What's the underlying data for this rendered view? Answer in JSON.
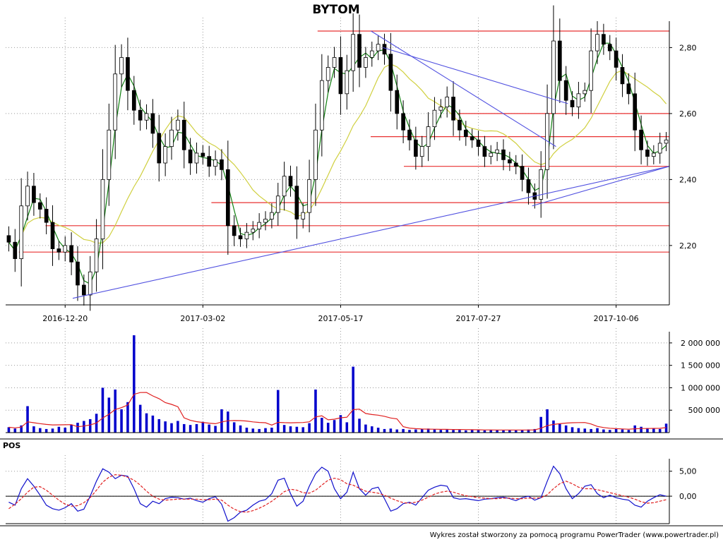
{
  "chart_data": [
    {
      "type": "candlestick",
      "title": "BYTOM",
      "x_tick_labels": [
        "2016-12-20",
        "2017-03-02",
        "2017-05-17",
        "2017-07-27",
        "2017-10-06"
      ],
      "y_tick_labels": [
        "2,20",
        "2,40",
        "2,60",
        "2,80"
      ],
      "y_ticks": [
        2.2,
        2.4,
        2.6,
        2.8
      ],
      "ylim": [
        2.02,
        2.88
      ],
      "grid": true,
      "series": [
        {
          "name": "",
          "kind": "ohlc",
          "values": [
            2.21,
            2.16,
            2.32,
            2.38,
            2.33,
            2.31,
            2.27,
            2.19,
            2.18,
            2.2,
            2.15,
            2.08,
            2.05,
            2.12,
            2.22,
            2.4,
            2.55,
            2.72,
            2.77,
            2.67,
            2.61,
            2.58,
            2.6,
            2.54,
            2.45,
            2.5,
            2.55,
            2.58,
            2.49,
            2.45,
            2.48,
            2.47,
            2.44,
            2.46,
            2.43,
            2.26,
            2.23,
            2.22,
            2.24,
            2.25,
            2.27,
            2.28,
            2.3,
            2.35,
            2.41,
            2.38,
            2.28,
            2.3,
            2.4,
            2.55,
            2.7,
            2.74,
            2.77,
            2.66,
            2.73,
            2.84,
            2.74,
            2.77,
            2.79,
            2.81,
            2.78,
            2.67,
            2.6,
            2.55,
            2.52,
            2.47,
            2.5,
            2.56,
            2.61,
            2.62,
            2.65,
            2.58,
            2.55,
            2.53,
            2.52,
            2.5,
            2.47,
            2.48,
            2.49,
            2.46,
            2.45,
            2.44,
            2.4,
            2.36,
            2.34,
            2.43,
            2.6,
            2.82,
            2.7,
            2.64,
            2.62,
            2.66,
            2.67,
            2.79,
            2.84,
            2.81,
            2.79,
            2.74,
            2.69,
            2.66,
            2.55,
            2.49,
            2.47,
            2.48,
            2.51,
            2.52
          ]
        },
        {
          "name": "",
          "kind": "ma_short",
          "color": "#108010"
        },
        {
          "name": "",
          "kind": "ma_long",
          "color": "#d0d040"
        }
      ],
      "horizontal_levels": [
        2.85,
        2.6,
        2.53,
        2.44,
        2.33,
        2.26,
        2.18
      ],
      "trend_lines": [
        {
          "from": [
            0.0,
            2.04
          ],
          "to": [
            1.0,
            2.44
          ]
        },
        {
          "from": [
            0.5,
            2.85
          ],
          "to": [
            0.81,
            2.5
          ]
        },
        {
          "from": [
            0.52,
            2.8
          ],
          "to": [
            0.83,
            2.63
          ]
        },
        {
          "from": [
            0.77,
            2.32
          ],
          "to": [
            1.0,
            2.44
          ]
        }
      ]
    },
    {
      "type": "bar",
      "panel": "volume",
      "y_tick_labels": [
        "500 000",
        "1 000 000",
        "1 500 000",
        "2 000 000"
      ],
      "y_ticks": [
        500000,
        1000000,
        1500000,
        2000000
      ],
      "ylim": [
        0,
        2250000
      ],
      "bar_color": "#0000cc",
      "ma_color": "#e02020",
      "values": [
        120000,
        90000,
        160000,
        590000,
        140000,
        100000,
        80000,
        90000,
        130000,
        110000,
        180000,
        220000,
        260000,
        300000,
        420000,
        1000000,
        780000,
        960000,
        520000,
        680000,
        2170000,
        620000,
        430000,
        380000,
        300000,
        250000,
        210000,
        260000,
        190000,
        170000,
        190000,
        240000,
        180000,
        150000,
        520000,
        470000,
        230000,
        160000,
        110000,
        90000,
        80000,
        100000,
        110000,
        950000,
        170000,
        140000,
        130000,
        120000,
        210000,
        960000,
        330000,
        220000,
        280000,
        390000,
        230000,
        1470000,
        310000,
        180000,
        140000,
        110000,
        80000,
        90000,
        70000,
        80000,
        60000,
        70000,
        80000,
        90000,
        70000,
        60000,
        70000,
        60000,
        60000,
        50000,
        60000,
        70000,
        50000,
        60000,
        60000,
        50000,
        60000,
        50000,
        60000,
        70000,
        80000,
        350000,
        520000,
        270000,
        190000,
        160000,
        120000,
        100000,
        90000,
        80000,
        100000,
        70000,
        60000,
        80000,
        70000,
        60000,
        160000,
        130000,
        100000,
        90000,
        80000,
        200000
      ]
    },
    {
      "type": "line",
      "panel": "indicator",
      "label": "POS",
      "y_tick_labels": [
        "0,00",
        "5,00"
      ],
      "y_ticks": [
        0,
        5
      ],
      "ylim": [
        -5.5,
        7.5
      ],
      "series": [
        {
          "name": "",
          "color": "#1010cc",
          "style": "solid",
          "values": [
            -1.2,
            -1.8,
            1.5,
            3.5,
            2.0,
            0.2,
            -1.8,
            -2.5,
            -2.8,
            -2.3,
            -1.5,
            -3.0,
            -2.6,
            0.0,
            3.0,
            5.5,
            4.8,
            3.5,
            4.2,
            4.0,
            1.5,
            -1.5,
            -2.2,
            -1.0,
            -1.5,
            -0.5,
            -0.2,
            -0.3,
            -0.6,
            -0.4,
            -0.9,
            -1.2,
            -0.5,
            -0.1,
            -1.6,
            -5.0,
            -4.3,
            -3.2,
            -2.8,
            -1.8,
            -1.0,
            -0.7,
            0.5,
            3.2,
            3.6,
            0.5,
            -2.0,
            -1.0,
            2.0,
            4.5,
            5.8,
            5.0,
            1.5,
            -0.5,
            0.8,
            4.8,
            1.5,
            0.2,
            1.5,
            1.8,
            -0.5,
            -3.0,
            -2.5,
            -1.5,
            -1.2,
            -1.8,
            -0.3,
            1.2,
            1.8,
            2.2,
            2.0,
            -0.3,
            -0.6,
            -0.5,
            -0.7,
            -0.9,
            -0.6,
            -0.5,
            -0.3,
            -0.2,
            -0.5,
            -0.9,
            -0.3,
            0.0,
            -0.8,
            -0.3,
            3.0,
            6.0,
            4.5,
            1.5,
            -0.5,
            0.5,
            2.0,
            2.3,
            0.5,
            -0.3,
            0.2,
            -0.3,
            -0.6,
            -0.8,
            -1.8,
            -2.2,
            -1.0,
            -0.3,
            0.3,
            0.0
          ]
        },
        {
          "name": "",
          "color": "#e02020",
          "style": "dashed",
          "values": [
            -2.5,
            -1.6,
            -0.5,
            0.8,
            1.8,
            1.9,
            1.2,
            0.2,
            -0.8,
            -1.6,
            -2.0,
            -1.9,
            -1.3,
            -0.3,
            1.2,
            2.8,
            3.8,
            4.3,
            4.2,
            3.8,
            3.2,
            2.2,
            1.0,
            0.0,
            -0.6,
            -0.8,
            -0.7,
            -0.6,
            -0.6,
            -0.6,
            -0.6,
            -0.7,
            -0.7,
            -0.6,
            -0.8,
            -1.8,
            -2.6,
            -3.1,
            -3.2,
            -2.9,
            -2.4,
            -1.8,
            -1.0,
            -0.1,
            0.9,
            1.4,
            1.2,
            0.7,
            0.6,
            1.2,
            2.2,
            3.2,
            3.6,
            3.3,
            2.5,
            2.2,
            1.6,
            1.0,
            0.8,
            0.6,
            0.2,
            -0.4,
            -0.9,
            -1.3,
            -1.4,
            -1.2,
            -0.8,
            -0.2,
            0.4,
            0.8,
            1.0,
            0.8,
            0.4,
            0.1,
            -0.1,
            -0.3,
            -0.4,
            -0.5,
            -0.5,
            -0.4,
            -0.4,
            -0.5,
            -0.5,
            -0.4,
            -0.4,
            -0.3,
            0.3,
            1.5,
            2.5,
            3.0,
            2.5,
            1.8,
            1.5,
            1.5,
            1.3,
            1.0,
            0.7,
            0.4,
            0.1,
            -0.2,
            -0.6,
            -1.1,
            -1.4,
            -1.3,
            -1.0,
            -0.7
          ]
        }
      ]
    }
  ],
  "footer": "Wykres został stworzony za pomocą programu PowerTrader (www.powertrader.pl)"
}
